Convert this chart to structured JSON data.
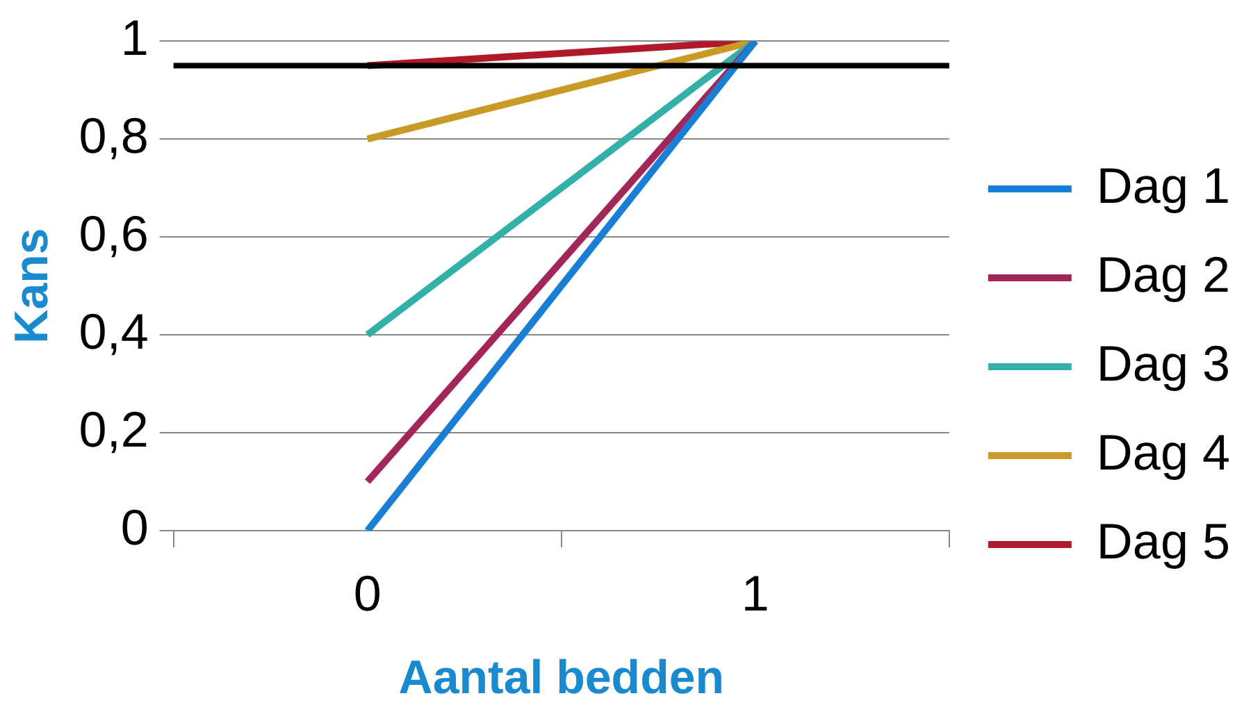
{
  "chart_data": {
    "type": "line",
    "xlabel": "Aantal bedden",
    "ylabel": "Kans",
    "categories": [
      "0",
      "1"
    ],
    "series": [
      {
        "name": "Dag 1",
        "color": "#1a7fd4",
        "values": [
          0,
          1
        ]
      },
      {
        "name": "Dag 2",
        "color": "#a3265a",
        "values": [
          0.1,
          1
        ]
      },
      {
        "name": "Dag 3",
        "color": "#34b0aa",
        "values": [
          0.4,
          1
        ]
      },
      {
        "name": "Dag 4",
        "color": "#c99a26",
        "values": [
          0.8,
          1
        ]
      },
      {
        "name": "Dag 5",
        "color": "#b0192a",
        "values": [
          0.95,
          1
        ]
      }
    ],
    "ylim": [
      0,
      1
    ],
    "yticks": [
      0,
      {
        "value": 0.2,
        "label": "0,2"
      },
      {
        "value": 0.4,
        "label": "0,4"
      },
      {
        "value": 0.6,
        "label": "0,6"
      },
      {
        "value": 0.8,
        "label": "0,8"
      },
      1
    ],
    "ref_lines": [
      {
        "axis": "y",
        "value": 0.95,
        "color": "#000000"
      }
    ],
    "grid": "y",
    "legend": "right",
    "marker": "none",
    "line_style": "solid"
  }
}
